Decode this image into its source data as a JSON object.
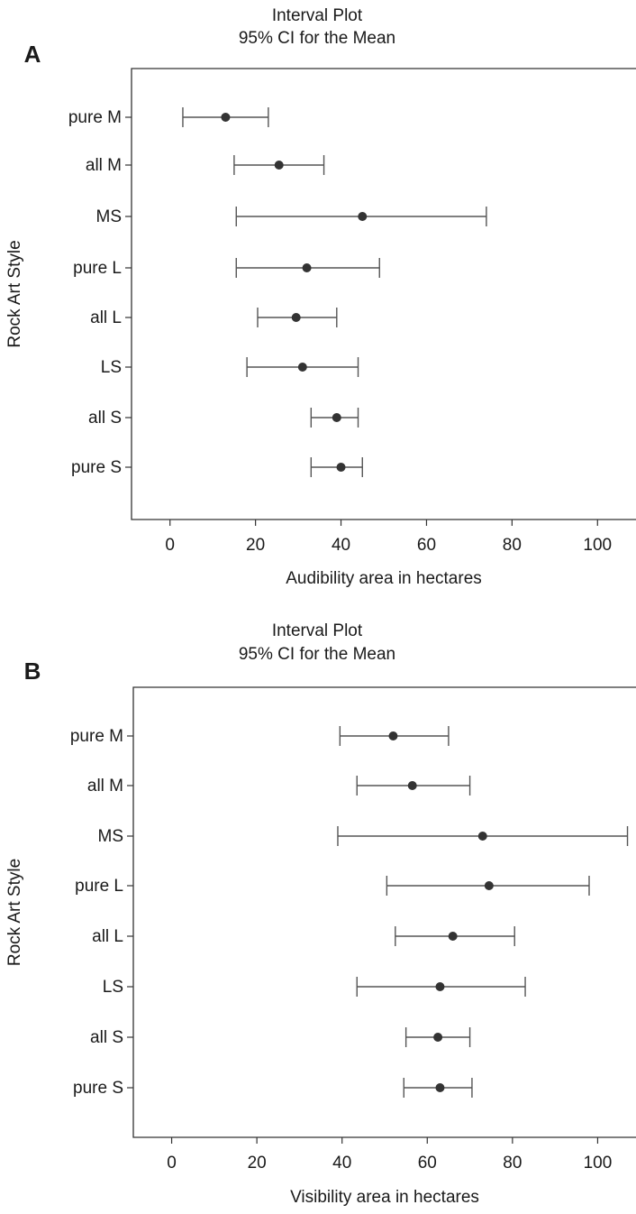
{
  "chart_data": [
    {
      "type": "interval",
      "panel_label": "A",
      "title": "Interval Plot",
      "subtitle": "95% CI for the Mean",
      "xlabel": "Audibility area in hectares",
      "ylabel": "Rock Art Style",
      "xlim": [
        -9,
        109
      ],
      "xticks": [
        0,
        20,
        40,
        60,
        80,
        100
      ],
      "grid": false,
      "categories": [
        "pure M",
        "all M",
        "MS",
        "pure L",
        "all L",
        "LS",
        "all S",
        "pure S"
      ],
      "means": [
        13,
        25.5,
        45,
        32,
        29.5,
        31,
        39,
        40
      ],
      "lower": [
        3,
        15,
        15.5,
        15.5,
        20.5,
        18,
        33,
        33
      ],
      "upper": [
        23,
        36,
        74,
        49,
        39,
        44,
        44,
        45
      ],
      "colors": {
        "axis": "#333333",
        "interval": "#555555",
        "point": "#333333"
      }
    },
    {
      "type": "interval",
      "panel_label": "B",
      "title": "Interval Plot",
      "subtitle": "95% CI for the Mean",
      "xlabel": "Visibility area in hectares",
      "ylabel": "Rock Art Style",
      "xlim": [
        -9,
        109
      ],
      "xticks": [
        0,
        20,
        40,
        60,
        80,
        100
      ],
      "grid": false,
      "categories": [
        "pure M",
        "all M",
        "MS",
        "pure L",
        "all L",
        "LS",
        "all S",
        "pure S"
      ],
      "means": [
        52,
        56.5,
        73,
        74.5,
        66,
        63,
        62.5,
        63
      ],
      "lower": [
        39.5,
        43.5,
        39,
        50.5,
        52.5,
        43.5,
        55,
        54.5
      ],
      "upper": [
        65,
        70,
        107,
        98,
        80.5,
        83,
        70,
        70.5
      ],
      "colors": {
        "axis": "#333333",
        "interval": "#555555",
        "point": "#333333"
      }
    }
  ]
}
